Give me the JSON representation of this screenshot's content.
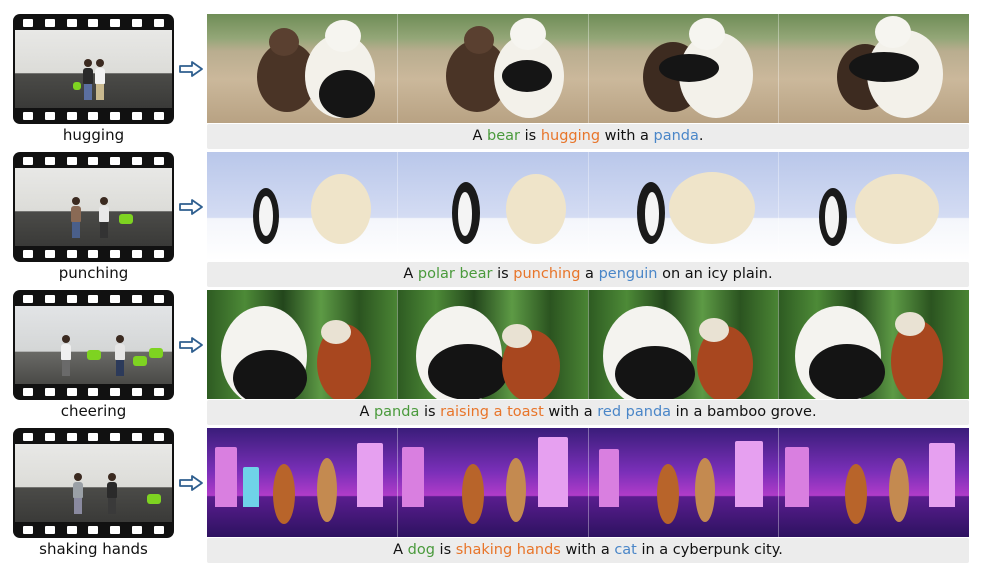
{
  "rows": [
    {
      "action": "hugging",
      "caption": [
        {
          "text": "A ",
          "role": "plain"
        },
        {
          "text": "bear",
          "role": "subject"
        },
        {
          "text": " is ",
          "role": "plain"
        },
        {
          "text": "hugging",
          "role": "action"
        },
        {
          "text": " with a ",
          "role": "plain"
        },
        {
          "text": "panda",
          "role": "object"
        },
        {
          "text": ".",
          "role": "plain"
        }
      ]
    },
    {
      "action": "punching",
      "caption": [
        {
          "text": "A ",
          "role": "plain"
        },
        {
          "text": "polar bear",
          "role": "subject"
        },
        {
          "text": " is ",
          "role": "plain"
        },
        {
          "text": "punching",
          "role": "action"
        },
        {
          "text": " a ",
          "role": "plain"
        },
        {
          "text": "penguin",
          "role": "object"
        },
        {
          "text": " on an icy plain.",
          "role": "plain"
        }
      ]
    },
    {
      "action": "cheering",
      "caption": [
        {
          "text": "A ",
          "role": "plain"
        },
        {
          "text": "panda",
          "role": "subject"
        },
        {
          "text": " is ",
          "role": "plain"
        },
        {
          "text": "raising a toast",
          "role": "action"
        },
        {
          "text": " with a ",
          "role": "plain"
        },
        {
          "text": "red panda",
          "role": "object"
        },
        {
          "text": " in a bamboo grove.",
          "role": "plain"
        }
      ]
    },
    {
      "action": "shaking hands",
      "caption": [
        {
          "text": "A ",
          "role": "plain"
        },
        {
          "text": "dog",
          "role": "subject"
        },
        {
          "text": " is ",
          "role": "plain"
        },
        {
          "text": "shaking hands",
          "role": "action"
        },
        {
          "text": " with a ",
          "role": "plain"
        },
        {
          "text": "cat",
          "role": "object"
        },
        {
          "text": " in a cyberpunk city.",
          "role": "plain"
        }
      ]
    }
  ],
  "colors": {
    "subject": "#4a9a3c",
    "action": "#e8752a",
    "object": "#4a86c8",
    "caption_bg": "#ececec",
    "arrow": "#2f5f8f"
  },
  "icons": {
    "arrow": "arrow-right-outline-icon",
    "film": "film-strip-icon"
  }
}
